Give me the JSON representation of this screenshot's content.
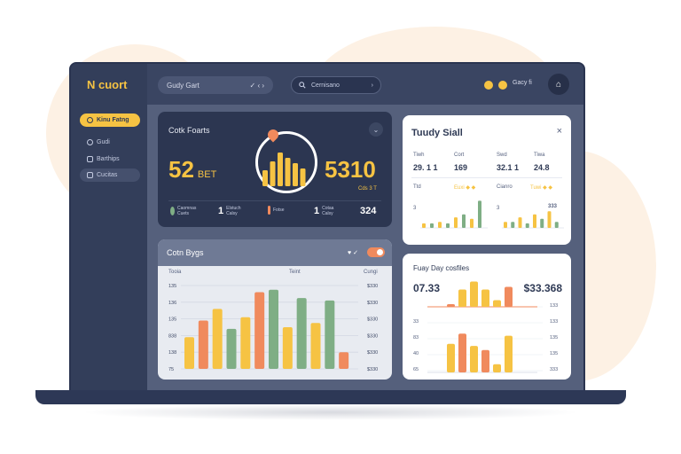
{
  "app": {
    "logo_mark": "N",
    "logo_text": "cuort"
  },
  "sidebar": {
    "items": [
      {
        "label": "Kinu Fatng",
        "active": true
      },
      {
        "label": "Gudi"
      },
      {
        "label": "Barthips"
      },
      {
        "label": "Cucitas",
        "selected": true
      }
    ]
  },
  "topbar": {
    "select_label": "Gudy Gart",
    "select_chevron": "✓ ‹ ›",
    "search_placeholder": "Cernisano",
    "search_arrow": "›",
    "user_name": "Gacy fi",
    "bell_icon": "⌂"
  },
  "card_dark": {
    "title": "Cotk Foarts",
    "big_left": "52",
    "big_left_unit": "BET",
    "big_right": "5310",
    "big_right_sub": "Cds 3 T",
    "stats": [
      {
        "num": "",
        "label": "Caomnas\nCuets"
      },
      {
        "num": "1",
        "label": "Elstuch\nCalsy"
      },
      {
        "num": "",
        "label": "Fotse"
      },
      {
        "num": "1",
        "label": "Cotaa\nCalsy"
      }
    ],
    "total": "324",
    "colors": {
      "yellow": "#f6c343",
      "orange": "#f08a5d",
      "green": "#7fae85"
    }
  },
  "card_white_top": {
    "title": "Tuudy Siall",
    "close_icon": "×",
    "cols": [
      {
        "label": "Tiwh",
        "value": "29. 1 1"
      },
      {
        "label": "Cort",
        "value": "169"
      },
      {
        "label": "Swd",
        "value": "32.1 1"
      },
      {
        "label": "Tiwa",
        "value": "24.8"
      }
    ],
    "legend_left": "Ttd",
    "legend_mid": "Euxi ◆ ◆",
    "legend_mid2": "Cianro",
    "legend_right": "Tuwi ◆ ◆",
    "left_axis": "3",
    "right_axis": "3",
    "right_val": "333",
    "bars_left": [
      0.15,
      0.15,
      0.2,
      0.15,
      0.35,
      0.45,
      0.3,
      0.9
    ],
    "bars_right": [
      0.2,
      0.2,
      0.35,
      0.15,
      0.45,
      0.3,
      0.55,
      0.2
    ]
  },
  "card_grey": {
    "title": "Cotn Bygs",
    "heart_icon": "♥ ✓",
    "header_left": "Tooia",
    "header_mid": "Teint",
    "header_right": "Cungi",
    "y_left": [
      "135",
      "136",
      "135",
      "838",
      "138",
      "75"
    ],
    "y_right": [
      "$330",
      "$330",
      "$330",
      "$330",
      "$330",
      "$330"
    ],
    "bars": [
      {
        "v": 0.38,
        "c": "#f6c343"
      },
      {
        "v": 0.58,
        "c": "#f08a5d"
      },
      {
        "v": 0.72,
        "c": "#f6c343"
      },
      {
        "v": 0.48,
        "c": "#7fae85"
      },
      {
        "v": 0.62,
        "c": "#f6c343"
      },
      {
        "v": 0.92,
        "c": "#f08a5d"
      },
      {
        "v": 0.95,
        "c": "#7fae85"
      },
      {
        "v": 0.5,
        "c": "#f6c343"
      },
      {
        "v": 0.85,
        "c": "#7fae85"
      },
      {
        "v": 0.55,
        "c": "#f6c343"
      },
      {
        "v": 0.82,
        "c": "#7fae85"
      },
      {
        "v": 0.2,
        "c": "#f08a5d"
      }
    ]
  },
  "card_white_bottom": {
    "title": "Fuay Day cosfiles",
    "big_left": "07.33",
    "big_right": "$33.368",
    "y_left": [
      "33",
      "83",
      "40",
      "65"
    ],
    "y_right": [
      "133",
      "133",
      "135",
      "135",
      "333"
    ],
    "bars_top": [
      {
        "v": 0.1,
        "c": "#f08a5d"
      },
      {
        "v": 0.65,
        "c": "#f6c343"
      },
      {
        "v": 0.95,
        "c": "#f6c343"
      },
      {
        "v": 0.65,
        "c": "#f6c343"
      },
      {
        "v": 0.25,
        "c": "#f6c343"
      },
      {
        "v": 0.75,
        "c": "#f08a5d"
      }
    ],
    "bars_bottom": [
      {
        "v": 0.7,
        "c": "#f6c343"
      },
      {
        "v": 0.95,
        "c": "#f08a5d"
      },
      {
        "v": 0.65,
        "c": "#f6c343"
      },
      {
        "v": 0.55,
        "c": "#f08a5d"
      },
      {
        "v": 0.2,
        "c": "#f6c343"
      },
      {
        "v": 0.9,
        "c": "#f6c343"
      }
    ]
  }
}
